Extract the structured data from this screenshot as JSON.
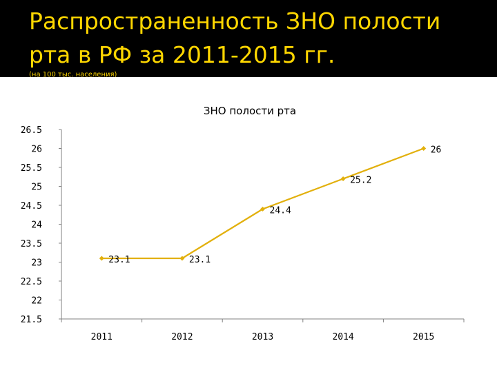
{
  "slide": {
    "title": "Распространенность ЗНО полости рта в РФ за 2011-2015 гг.",
    "subtitle": "(на 100 тыс. населения)"
  },
  "chart_data": {
    "type": "line",
    "title": "ЗНО полости рта",
    "xlabel": "",
    "ylabel": "",
    "categories": [
      "2011",
      "2012",
      "2013",
      "2014",
      "2015"
    ],
    "series": [
      {
        "values": [
          23.1,
          23.1,
          24.4,
          25.2,
          26
        ],
        "data_labels": [
          "23.1",
          "23.1",
          "24.4",
          "25.2",
          "26"
        ]
      }
    ],
    "ylim": [
      21.5,
      26.5
    ],
    "y_ticks": [
      "21.5",
      "22",
      "22.5",
      "23",
      "23.5",
      "24",
      "24.5",
      "25",
      "25.5",
      "26",
      "26.5"
    ],
    "grid": false,
    "legend": "none",
    "colors": {
      "line": "#E2B00C",
      "axis": "#808080",
      "text": "#000000",
      "title_text": "#FFD700",
      "slide_background": "#000000",
      "plot_background": "#FFFFFF"
    }
  }
}
